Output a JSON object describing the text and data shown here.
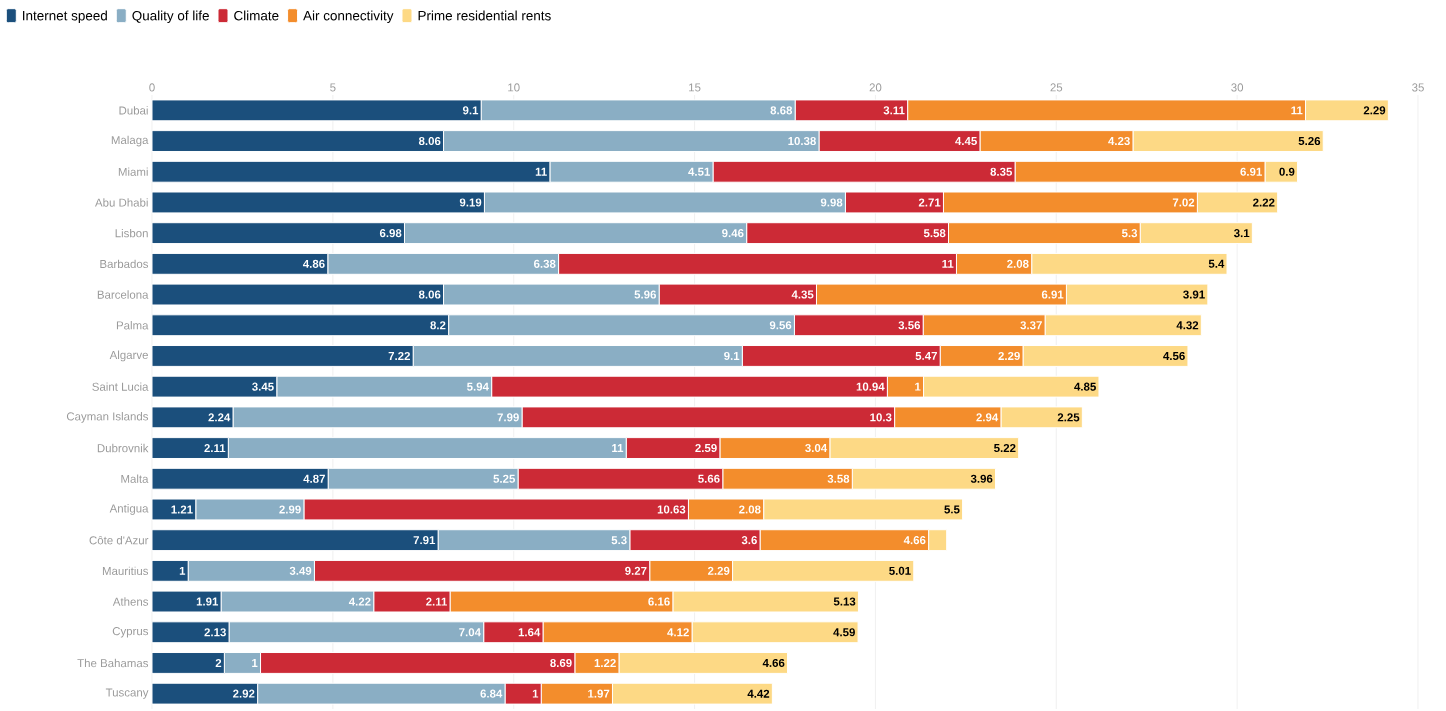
{
  "chart_data": {
    "type": "bar",
    "orientation": "horizontal",
    "stacked": true,
    "grid": "x",
    "legend": "top left",
    "categories": [
      "Dubai",
      "Malaga",
      "Miami",
      "Abu Dhabi",
      "Lisbon",
      "Barbados",
      "Barcelona",
      "Palma",
      "Algarve",
      "Saint Lucia",
      "Cayman Islands",
      "Dubrovnik",
      "Malta",
      "Antigua",
      "Côte d'Azur",
      "Mauritius",
      "Athens",
      "Cyprus",
      "The Bahamas",
      "Tuscany"
    ],
    "xlim": [
      0,
      35
    ],
    "xticks": [
      0,
      5,
      10,
      15,
      20,
      25,
      30,
      35
    ],
    "series": [
      {
        "name": "Internet speed",
        "color": "#1b4f7c",
        "values": [
          9.1,
          8.06,
          11,
          9.19,
          6.98,
          4.86,
          8.06,
          8.2,
          7.22,
          3.45,
          2.24,
          2.11,
          4.87,
          1.21,
          7.91,
          1,
          1.91,
          2.13,
          2,
          2.92
        ],
        "value_labels": [
          "9.1",
          "8.06",
          "11",
          "9.19",
          "6.98",
          "4.86",
          "8.06",
          "8.2",
          "7.22",
          "3.45",
          "2.24",
          "2.11",
          "4.87",
          "1.21",
          "7.91",
          "1",
          "1.91",
          "2.13",
          "2",
          "2.92"
        ]
      },
      {
        "name": "Quality of life",
        "color": "#8aaec4",
        "values": [
          8.68,
          10.38,
          4.51,
          9.98,
          9.46,
          6.38,
          5.96,
          9.56,
          9.1,
          5.94,
          7.99,
          11,
          5.25,
          2.99,
          5.3,
          3.49,
          4.22,
          7.04,
          1,
          6.84
        ],
        "value_labels": [
          "8.68",
          "10.38",
          "4.51",
          "9.98",
          "9.46",
          "6.38",
          "5.96",
          "9.56",
          "9.1",
          "5.94",
          "7.99",
          "11",
          "5.25",
          "2.99",
          "5.3",
          "3.49",
          "4.22",
          "7.04",
          "1",
          "6.84"
        ]
      },
      {
        "name": "Climate",
        "color": "#cc2a36",
        "values": [
          3.11,
          4.45,
          8.35,
          2.71,
          5.58,
          11,
          4.35,
          3.56,
          5.47,
          10.94,
          10.3,
          2.59,
          5.66,
          10.63,
          3.6,
          9.27,
          2.11,
          1.64,
          8.69,
          1
        ],
        "value_labels": [
          "3.11",
          "4.45",
          "8.35",
          "2.71",
          "5.58",
          "11",
          "4.35",
          "3.56",
          "5.47",
          "10.94",
          "10.3",
          "2.59",
          "5.66",
          "10.63",
          "3.6",
          "9.27",
          "2.11",
          "1.64",
          "8.69",
          "1"
        ]
      },
      {
        "name": "Air connectivity",
        "color": "#f38d2c",
        "values": [
          11,
          4.23,
          6.91,
          7.02,
          5.3,
          2.08,
          6.91,
          3.37,
          2.29,
          1,
          2.94,
          3.04,
          3.58,
          2.08,
          4.66,
          2.29,
          6.16,
          4.12,
          1.22,
          1.97
        ],
        "value_labels": [
          "11",
          "4.23",
          "6.91",
          "7.02",
          "5.3",
          "2.08",
          "6.91",
          "3.37",
          "2.29",
          "1",
          "2.94",
          "3.04",
          "3.58",
          "2.08",
          "4.66",
          "2.29",
          "6.16",
          "4.12",
          "1.22",
          "1.97"
        ]
      },
      {
        "name": "Prime residential rents",
        "color": "#fdd985",
        "values": [
          2.29,
          5.26,
          0.9,
          2.22,
          3.1,
          5.4,
          3.91,
          4.32,
          4.56,
          4.85,
          2.25,
          5.22,
          3.96,
          5.5,
          0.5,
          5.01,
          5.13,
          4.59,
          4.66,
          4.42
        ],
        "value_labels": [
          "2.29",
          "5.26",
          "0.9",
          "2.22",
          "3.1",
          "5.4",
          "3.91",
          "4.32",
          "4.56",
          "4.85",
          "2.25",
          "5.22",
          "3.96",
          "5.5",
          null,
          "5.01",
          "5.13",
          "4.59",
          "4.66",
          "4.42"
        ]
      }
    ]
  }
}
